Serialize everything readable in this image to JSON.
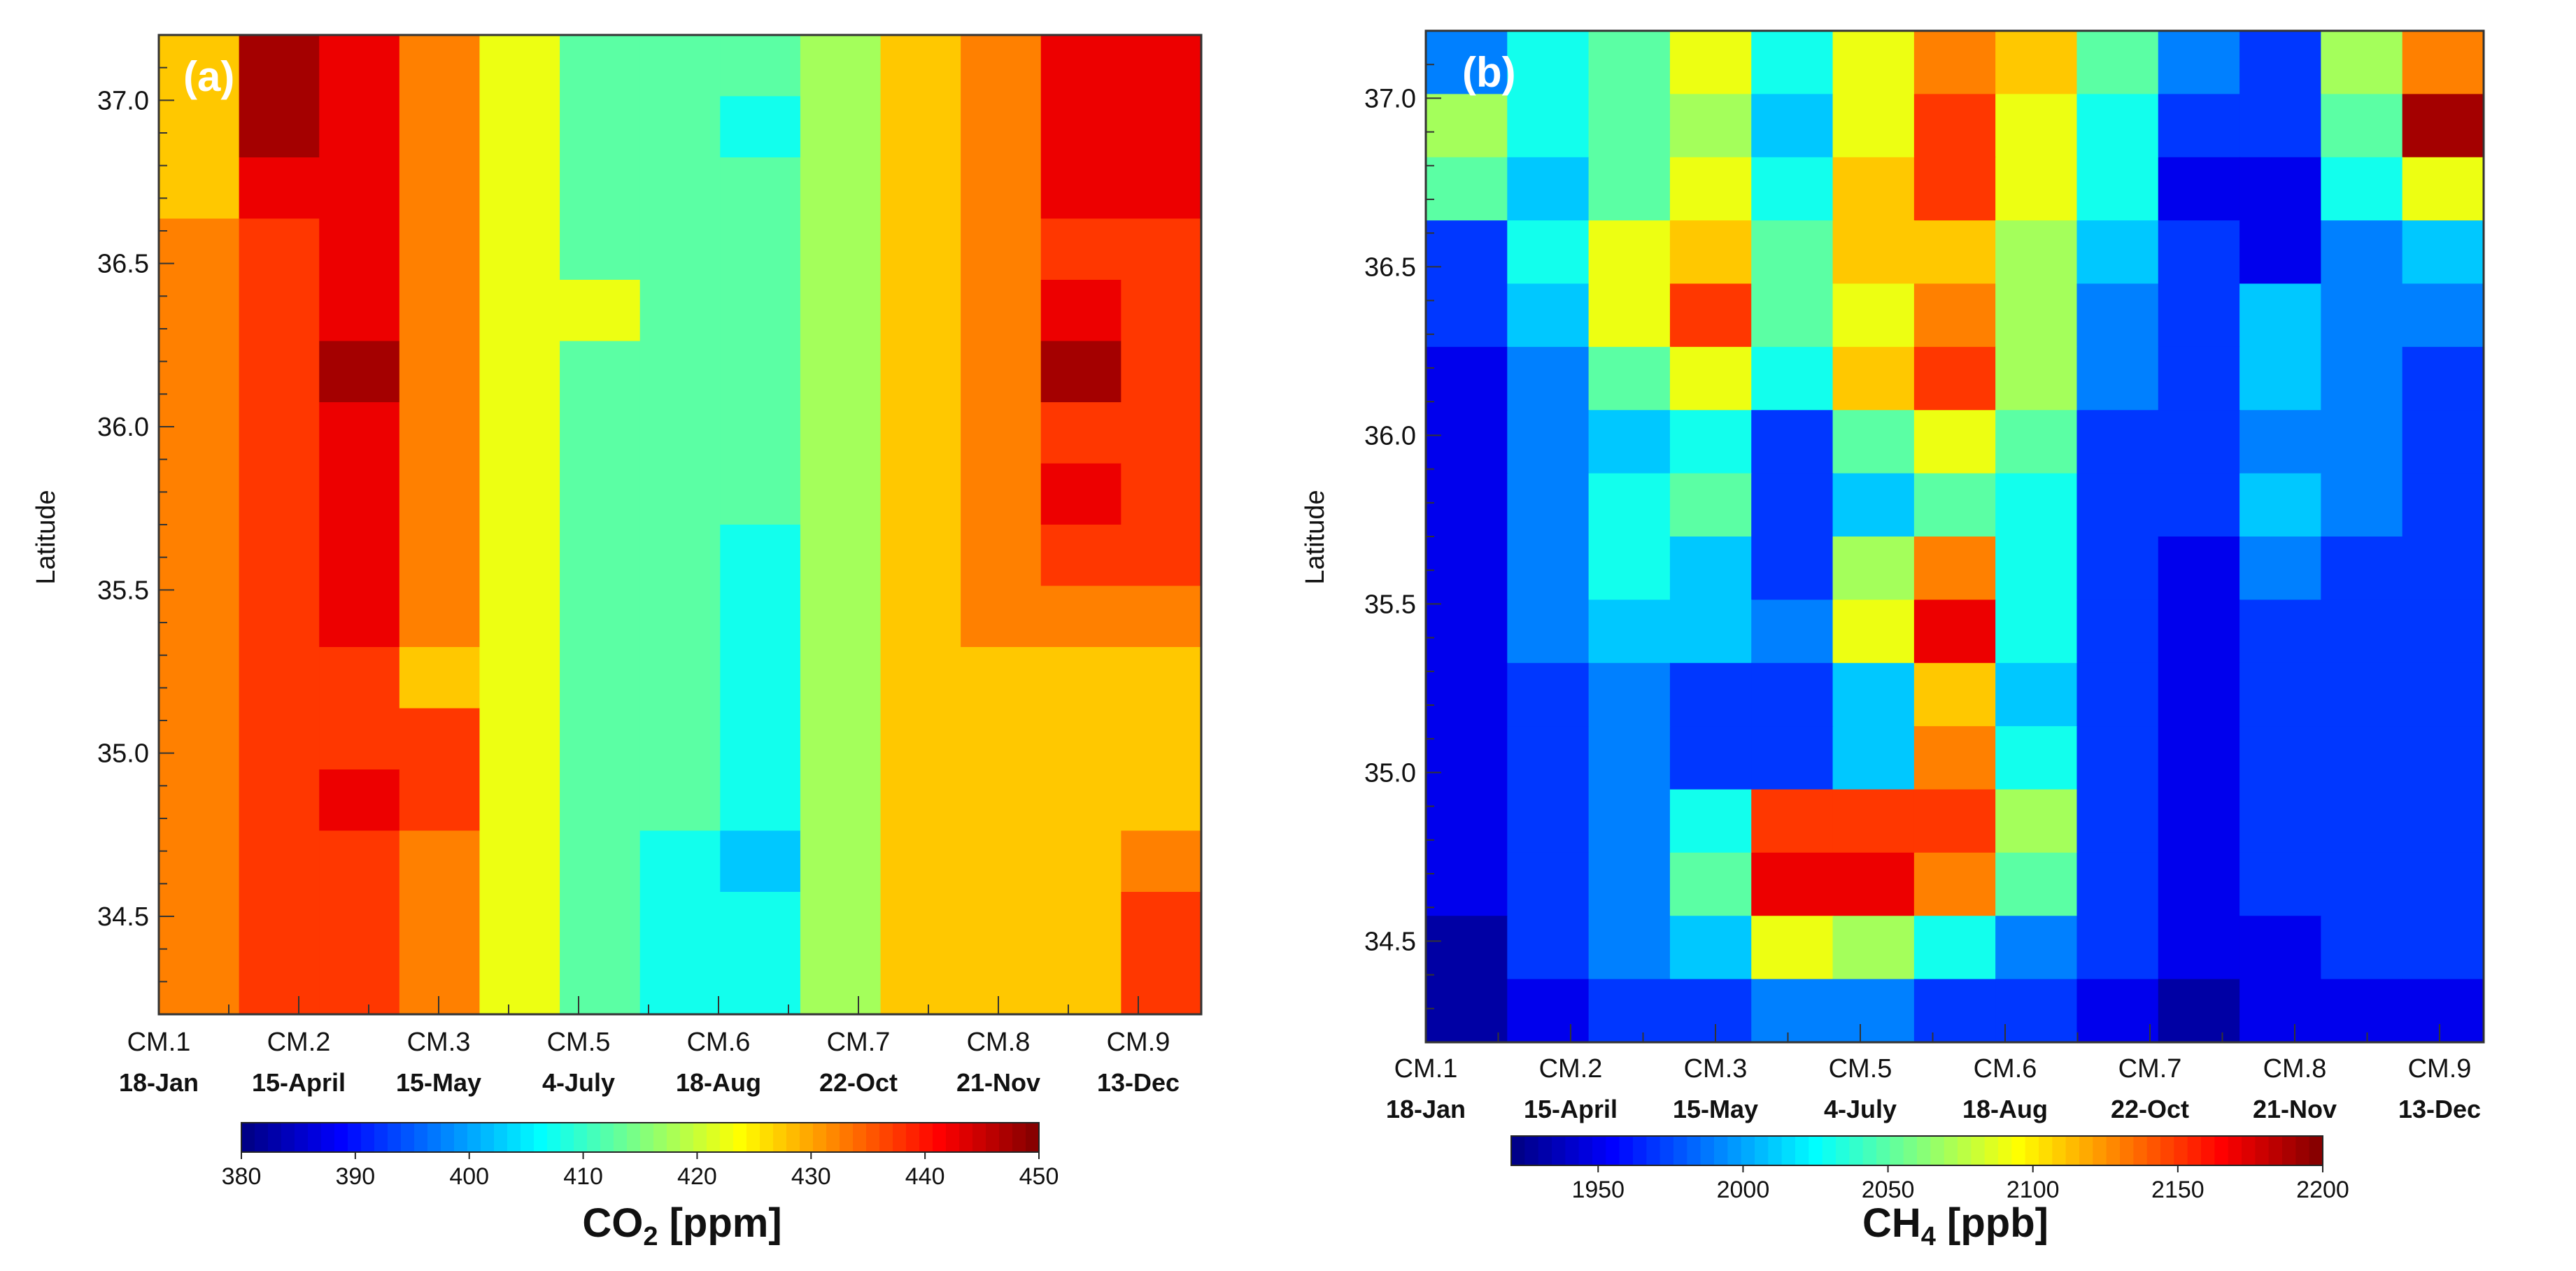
{
  "chart_data": [
    {
      "type": "heatmap",
      "panel_label": "(a)",
      "xcategories": [
        "CM.1",
        "CM.2",
        "CM.3",
        "CM.5",
        "CM.6",
        "CM.7",
        "CM.8",
        "CM.9"
      ],
      "xdates": [
        "18-Jan",
        "15-April",
        "15-May",
        "4-July",
        "18-Aug",
        "22-Oct",
        "21-Nov",
        "13-Dec"
      ],
      "ylabel": "Latitude",
      "yticks": [
        "34.5",
        "35.0",
        "35.5",
        "36.0",
        "36.5",
        "37.0"
      ],
      "ylim": [
        34.2,
        37.2
      ],
      "colorbar": {
        "title_main": "CO",
        "title_sub": "2",
        "title_unit": " [ppm]",
        "min": 380,
        "max": 450,
        "ticks": [
          "380",
          "390",
          "400",
          "410",
          "420",
          "430",
          "440",
          "450"
        ]
      },
      "latitudes": [
        37.2,
        37.0,
        36.8,
        36.6,
        36.4,
        36.2,
        36.0,
        35.8,
        35.6,
        35.4,
        35.2,
        35.0,
        34.8,
        34.6,
        34.4,
        34.2
      ],
      "grid": [
        [
          428,
          446,
          441,
          430,
          420,
          412,
          410,
          410,
          416,
          428,
          432,
          441,
          444
        ],
        [
          428,
          446,
          441,
          430,
          420,
          412,
          410,
          408,
          416,
          428,
          432,
          441,
          444
        ],
        [
          428,
          441,
          441,
          430,
          420,
          412,
          410,
          410,
          416,
          428,
          432,
          441,
          441
        ],
        [
          430,
          436,
          441,
          430,
          420,
          414,
          410,
          410,
          416,
          428,
          432,
          437,
          438
        ],
        [
          432,
          436,
          444,
          430,
          420,
          424,
          410,
          410,
          416,
          428,
          433,
          442,
          437
        ],
        [
          432,
          436,
          445,
          430,
          420,
          414,
          410,
          410,
          416,
          428,
          433,
          445,
          437
        ],
        [
          432,
          436,
          443,
          430,
          420,
          414,
          410,
          410,
          416,
          428,
          434,
          437,
          437
        ],
        [
          432,
          438,
          443,
          430,
          420,
          414,
          410,
          410,
          416,
          428,
          433,
          443,
          437
        ],
        [
          432,
          438,
          443,
          430,
          420,
          414,
          410,
          408,
          416,
          428,
          432,
          437,
          437
        ],
        [
          432,
          437,
          441,
          430,
          420,
          414,
          410,
          408,
          416,
          428,
          430,
          434,
          433
        ],
        [
          432,
          436,
          436,
          427,
          420,
          414,
          410,
          408,
          416,
          428,
          428,
          428,
          428
        ],
        [
          432,
          436,
          436,
          435,
          424,
          414,
          410,
          406,
          416,
          428,
          428,
          428,
          428
        ],
        [
          432,
          436,
          442,
          436,
          424,
          414,
          410,
          406,
          416,
          428,
          428,
          428,
          428
        ],
        [
          432,
          436,
          436,
          432,
          424,
          414,
          407,
          402,
          416,
          428,
          428,
          428,
          433
        ],
        [
          432,
          436,
          436,
          432,
          424,
          414,
          407,
          406,
          416,
          428,
          428,
          428,
          436
        ],
        [
          432,
          436,
          436,
          432,
          424,
          414,
          407,
          406,
          416,
          428,
          428,
          428,
          436
        ]
      ]
    },
    {
      "type": "heatmap",
      "panel_label": "(b)",
      "xcategories": [
        "CM.1",
        "CM.2",
        "CM.3",
        "CM.5",
        "CM.6",
        "CM.7",
        "CM.8",
        "CM.9"
      ],
      "xdates": [
        "18-Jan",
        "15-April",
        "15-May",
        "4-July",
        "18-Aug",
        "22-Oct",
        "21-Nov",
        "13-Dec"
      ],
      "ylabel": "Latitude",
      "yticks": [
        "34.5",
        "35.0",
        "35.5",
        "36.0",
        "36.5",
        "37.0"
      ],
      "ylim": [
        34.2,
        37.2
      ],
      "colorbar": {
        "title_main": "CH",
        "title_sub": "4",
        "title_unit": " [ppb]",
        "min": 1920,
        "max": 2200,
        "ticks": [
          "1950",
          "2000",
          "2050",
          "2100",
          "2150",
          "2200"
        ]
      },
      "latitudes": [
        37.2,
        37.0,
        36.8,
        36.6,
        36.4,
        36.2,
        36.0,
        35.8,
        35.6,
        35.4,
        35.2,
        35.0,
        34.8,
        34.6,
        34.4,
        34.2
      ],
      "grid": [
        [
          1990,
          2020,
          2050,
          2080,
          2030,
          2080,
          2120,
          2100,
          2040,
          1990,
          1970,
          2060,
          2130
        ],
        [
          2070,
          2020,
          2050,
          2070,
          2000,
          2080,
          2140,
          2090,
          2030,
          1960,
          1960,
          2050,
          2190
        ],
        [
          2040,
          2010,
          2040,
          2080,
          2030,
          2100,
          2150,
          2080,
          2020,
          1950,
          1940,
          2020,
          2080
        ],
        [
          1960,
          2030,
          2080,
          2110,
          2040,
          2100,
          2110,
          2060,
          2000,
          1960,
          1950,
          1980,
          2010
        ],
        [
          1960,
          2000,
          2080,
          2140,
          2040,
          2080,
          2120,
          2060,
          1990,
          1960,
          2000,
          1980,
          1980
        ],
        [
          1950,
          1990,
          2040,
          2090,
          2030,
          2100,
          2150,
          2060,
          1980,
          1960,
          2000,
          1980,
          1970
        ],
        [
          1950,
          1980,
          2010,
          2030,
          1970,
          2050,
          2090,
          2040,
          1970,
          1960,
          1990,
          1980,
          1970
        ],
        [
          1950,
          1980,
          2020,
          2040,
          1970,
          2010,
          2050,
          2030,
          1970,
          1960,
          2000,
          1980,
          1960
        ],
        [
          1940,
          1980,
          2020,
          2010,
          1960,
          2060,
          2130,
          2020,
          1960,
          1950,
          1980,
          1970,
          1960
        ],
        [
          1940,
          1980,
          2000,
          2010,
          1990,
          2080,
          2160,
          2020,
          1960,
          1950,
          1960,
          1960,
          1960
        ],
        [
          1940,
          1970,
          1990,
          1970,
          1960,
          2010,
          2110,
          2010,
          1960,
          1950,
          1960,
          1960,
          1960
        ],
        [
          1940,
          1960,
          1980,
          1970,
          1960,
          2000,
          2130,
          2020,
          1960,
          1950,
          1960,
          1960,
          1960
        ],
        [
          1940,
          1960,
          1980,
          2030,
          2150,
          2150,
          2150,
          2060,
          1970,
          1950,
          1960,
          1960,
          1960
        ],
        [
          1940,
          1960,
          1980,
          2040,
          2160,
          2160,
          2130,
          2040,
          1970,
          1950,
          1960,
          1960,
          1960
        ],
        [
          1930,
          1960,
          1980,
          2000,
          2090,
          2070,
          2030,
          1990,
          1960,
          1940,
          1950,
          1960,
          1960
        ],
        [
          1930,
          1950,
          1960,
          1970,
          1980,
          1980,
          1970,
          1960,
          1950,
          1930,
          1940,
          1950,
          1950
        ]
      ]
    }
  ]
}
